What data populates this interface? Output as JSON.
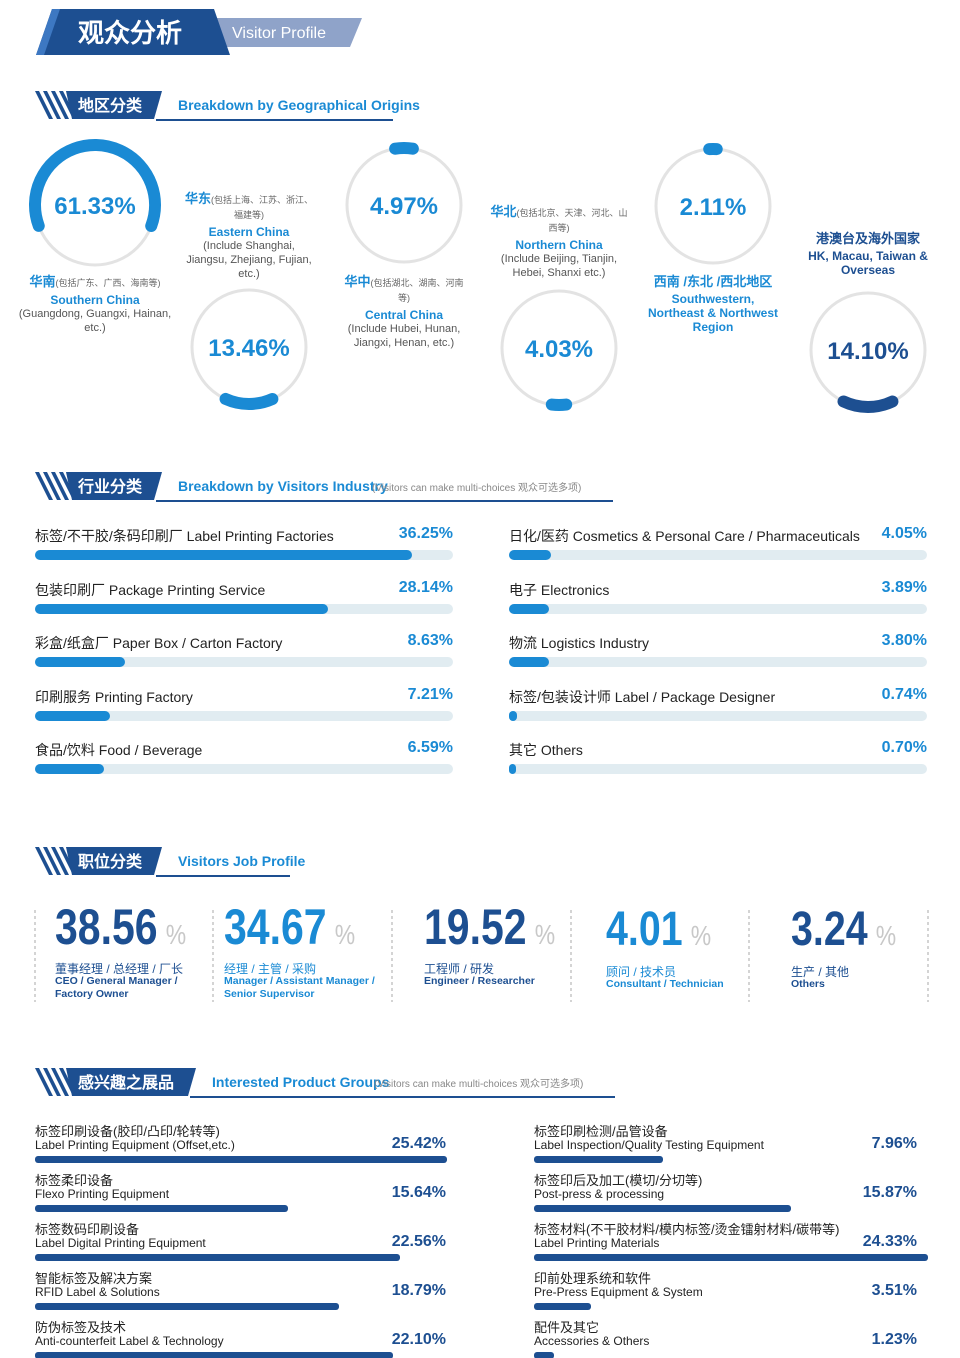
{
  "header": {
    "title_cn": "观众分析",
    "title_en": "Visitor Profile"
  },
  "regions": {
    "title_cn": "地区分类",
    "title_en": "Breakdown by Geographical Origins",
    "items": [
      {
        "value": 61.33,
        "value_label": "61.33%",
        "color": "#1a8ad4",
        "name_cn": "华南",
        "note_cn": "(包括广东、广西、海南等)",
        "name_en": "Southern China",
        "note_en": "(Guangdong, Guangxi, Hainan, etc.)"
      },
      {
        "value": 13.46,
        "value_label": "13.46%",
        "color": "#1a8ad4",
        "name_cn": "华东",
        "note_cn": "(包括上海、江苏、浙江、福建等)",
        "name_en": "Eastern China",
        "note_en": "(Include Shanghai, Jiangsu, Zhejiang, Fujian, etc.)"
      },
      {
        "value": 4.97,
        "value_label": "4.97%",
        "color": "#1a8ad4",
        "name_cn": "华中",
        "note_cn": "(包括湖北、湖南、河南等)",
        "name_en": "Central China",
        "note_en": "(Include Hubei, Hunan, Jiangxi, Henan, etc.)"
      },
      {
        "value": 4.03,
        "value_label": "4.03%",
        "color": "#1a8ad4",
        "name_cn": "华北",
        "note_cn": "(包括北京、天津、河北、山西等)",
        "name_en": "Northern China",
        "note_en": "(Include Beijing, Tianjin, Hebei, Shanxi etc.)"
      },
      {
        "value": 2.11,
        "value_label": "2.11%",
        "color": "#1a8ad4",
        "name_cn": "西南 /东北 /西北地区",
        "name_en": "Southwestern, Northeast & Northwest Region"
      },
      {
        "value": 14.1,
        "value_label": "14.10%",
        "color": "#1d4f91",
        "name_cn": "港澳台及海外国家",
        "name_en": "HK, Macau, Taiwan & Overseas"
      }
    ]
  },
  "industry": {
    "title_cn": "行业分类",
    "title_en": "Breakdown by Visitors Industry",
    "note": "(Visitors can make multi-choices 观众可选多项)",
    "bar_color": "#1a8ad4",
    "items": [
      {
        "label": "标签/不干胶/条码印刷厂 Label Printing Factories",
        "value": 36.25,
        "value_label": "36.25%"
      },
      {
        "label": "包装印刷厂 Package Printing Service",
        "value": 28.14,
        "value_label": "28.14%"
      },
      {
        "label": "彩盒/纸盒厂 Paper Box / Carton Factory",
        "value": 8.63,
        "value_label": "8.63%"
      },
      {
        "label": "印刷服务 Printing Factory",
        "value": 7.21,
        "value_label": "7.21%"
      },
      {
        "label": "食品/饮料 Food / Beverage",
        "value": 6.59,
        "value_label": "6.59%"
      },
      {
        "label": "日化/医药 Cosmetics & Personal Care / Pharmaceuticals",
        "value": 4.05,
        "value_label": "4.05%"
      },
      {
        "label": "电子 Electronics",
        "value": 3.89,
        "value_label": "3.89%"
      },
      {
        "label": "物流 Logistics Industry",
        "value": 3.8,
        "value_label": "3.80%"
      },
      {
        "label": "标签/包装设计师 Label / Package Designer",
        "value": 0.74,
        "value_label": "0.74%"
      },
      {
        "label": "其它 Others",
        "value": 0.7,
        "value_label": "0.70%"
      }
    ]
  },
  "job_profile": {
    "title_cn": "职位分类",
    "title_en": "Visitors Job Profile",
    "unit": "%",
    "items": [
      {
        "value": 38.56,
        "color": "#1d4f91",
        "label_cn": "董事经理 / 总经理 / 厂长",
        "label_en": "CEO / General Manager / Factory Owner"
      },
      {
        "value": 34.67,
        "color": "#1a8ad4",
        "label_cn": "经理 / 主管 / 采购",
        "label_en": "Manager / Assistant Manager / Senior Supervisor"
      },
      {
        "value": 19.52,
        "color": "#1d4f91",
        "label_cn": "工程师 / 研发",
        "label_en": "Engineer / Researcher"
      },
      {
        "value": 4.01,
        "color": "#1a8ad4",
        "label_cn": "顾问 / 技术员",
        "label_en": "Consultant / Technician"
      },
      {
        "value": 3.24,
        "color": "#1d4f91",
        "label_cn": "生产 / 其他",
        "label_en": "Others"
      }
    ]
  },
  "products": {
    "title_cn": "感兴趣之展品",
    "title_en": "Interested Product Groups",
    "note": "(Visitors can make multi-choices 观众可选多项)",
    "bar_color": "#1d4f91",
    "items": [
      {
        "label_cn": "标签印刷设备(胶印/凸印/轮转等)",
        "label_en": "Label Printing Equipment (Offset,etc.)",
        "value": 25.42,
        "value_label": "25.42%"
      },
      {
        "label_cn": "标签柔印设备",
        "label_en": "Flexo Printing Equipment",
        "value": 15.64,
        "value_label": "15.64%"
      },
      {
        "label_cn": "标签数码印刷设备",
        "label_en": "Label Digital Printing Equipment",
        "value": 22.56,
        "value_label": "22.56%"
      },
      {
        "label_cn": "智能标签及解决方案",
        "label_en": "RFID Label & Solutions",
        "value": 18.79,
        "value_label": "18.79%"
      },
      {
        "label_cn": "防伪标签及技术",
        "label_en": "Anti-counterfeit Label & Technology",
        "value": 22.1,
        "value_label": "22.10%"
      },
      {
        "label_cn": "标签印刷检测/品管设备",
        "label_en": "Label Inspection/Quality Testing Equipment",
        "value": 7.96,
        "value_label": "7.96%"
      },
      {
        "label_cn": "标签印后及加工(模切/分切等)",
        "label_en": "Post-press & processing",
        "value": 15.87,
        "value_label": "15.87%"
      },
      {
        "label_cn": "标签材料(不干胶材料/模内标签/烫金镭射材料/碳带等)",
        "label_en": "Label Printing Materials",
        "value": 24.33,
        "value_label": "24.33%"
      },
      {
        "label_cn": "印前处理系统和软件",
        "label_en": "Pre-Press Equipment & System",
        "value": 3.51,
        "value_label": "3.51%"
      },
      {
        "label_cn": "配件及其它",
        "label_en": "Accessories & Others",
        "value": 1.23,
        "value_label": "1.23%"
      }
    ]
  }
}
